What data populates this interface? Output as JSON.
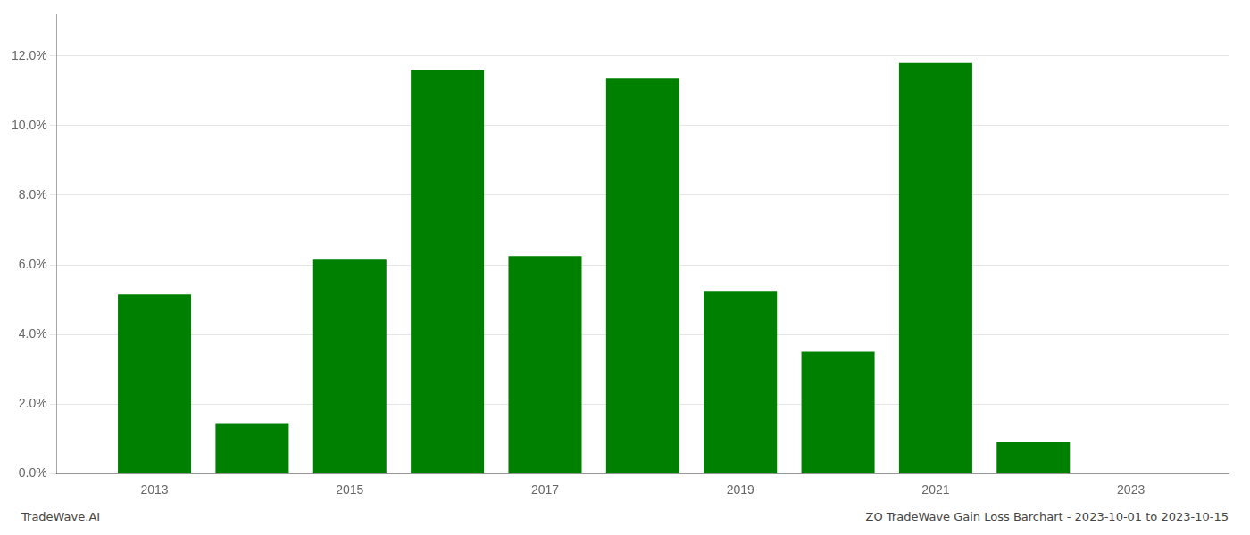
{
  "chart_data": {
    "type": "bar",
    "x": [
      2013,
      2014,
      2015,
      2016,
      2017,
      2018,
      2019,
      2020,
      2021,
      2022,
      2023
    ],
    "values": [
      0.0515,
      0.0145,
      0.0615,
      0.116,
      0.0625,
      0.1135,
      0.0525,
      0.035,
      0.118,
      0.009,
      0.0
    ],
    "color": "#008000",
    "xlim": [
      2012,
      2024
    ],
    "xticks": [
      2013,
      2015,
      2017,
      2019,
      2021,
      2023
    ],
    "ylim": [
      0,
      0.132
    ],
    "yticks": [
      {
        "value": 0.0,
        "label": "0.0%"
      },
      {
        "value": 0.02,
        "label": "2.0%"
      },
      {
        "value": 0.04,
        "label": "4.0%"
      },
      {
        "value": 0.06,
        "label": "6.0%"
      },
      {
        "value": 0.08,
        "label": "8.0%"
      },
      {
        "value": 0.1,
        "label": "10.0%"
      },
      {
        "value": 0.12,
        "label": "12.0%"
      }
    ],
    "grid": true,
    "annotations": [
      "TradeWave.AI",
      "ZO TradeWave Gain Loss Barchart - 2023-10-01 to 2023-10-15"
    ]
  }
}
